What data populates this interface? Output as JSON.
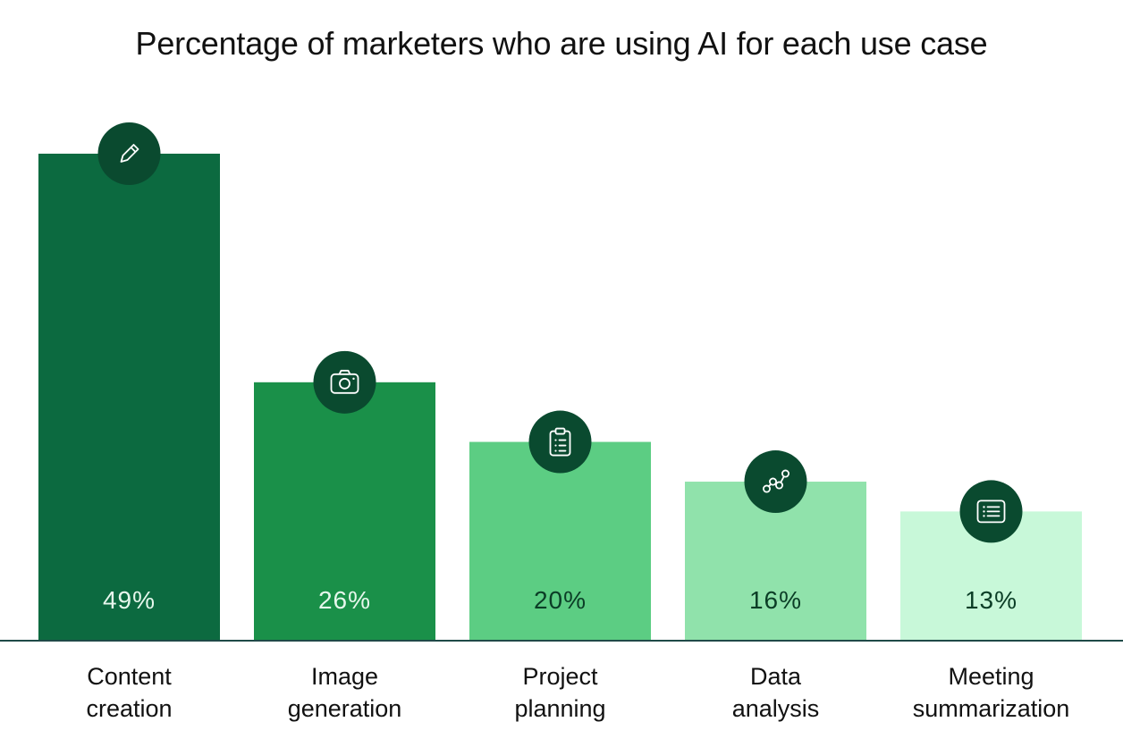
{
  "chart_data": {
    "type": "bar",
    "title": "Percentage of marketers who are using AI for each use case",
    "categories": [
      "Content creation",
      "Image generation",
      "Project planning",
      "Data analysis",
      "Meeting summarization"
    ],
    "category_lines": [
      [
        "Content",
        "creation"
      ],
      [
        "Image",
        "generation"
      ],
      [
        "Project",
        "planning"
      ],
      [
        "Data",
        "analysis"
      ],
      [
        "Meeting",
        "summarization"
      ]
    ],
    "values": [
      49,
      26,
      20,
      16,
      13
    ],
    "value_labels": [
      "49%",
      "26%",
      "20%",
      "16%",
      "13%"
    ],
    "ylim": [
      0,
      49
    ],
    "grid": false,
    "legend": "none",
    "bar_colors": [
      "#0c6a40",
      "#1a9049",
      "#5ccd83",
      "#90e2ab",
      "#c8f8d9"
    ],
    "value_label_colors": [
      "#e6f7ec",
      "#e6f7ec",
      "#0b3d26",
      "#0b3d26",
      "#0b3d26"
    ],
    "icons": [
      "pencil-icon",
      "camera-icon",
      "clipboard-icon",
      "line-chart-icon",
      "list-icon"
    ],
    "icon_badge_color": "#0a4a2f",
    "baseline_color": "#1f4a48"
  }
}
